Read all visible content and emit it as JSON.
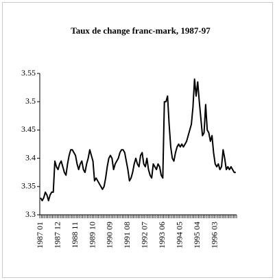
{
  "chart_data": {
    "type": "line",
    "title": "Taux de change franc-mark, 1987-97",
    "categories": [
      "1987 01",
      null,
      null,
      null,
      null,
      null,
      null,
      null,
      null,
      null,
      null,
      "1987 12",
      null,
      null,
      null,
      null,
      null,
      null,
      null,
      null,
      null,
      null,
      "1988 11",
      null,
      null,
      null,
      null,
      null,
      null,
      null,
      null,
      null,
      null,
      "1989 10",
      null,
      null,
      null,
      null,
      null,
      null,
      null,
      null,
      null,
      null,
      "1990 09",
      null,
      null,
      null,
      null,
      null,
      null,
      null,
      null,
      null,
      null,
      "1991 08",
      null,
      null,
      null,
      null,
      null,
      null,
      null,
      null,
      null,
      null,
      "1992 07",
      null,
      null,
      null,
      null,
      null,
      null,
      null,
      null,
      null,
      null,
      "1993 06",
      null,
      null,
      null,
      null,
      null,
      null,
      null,
      null,
      null,
      null,
      "1994 05",
      null,
      null,
      null,
      null,
      null,
      null,
      null,
      null,
      null,
      null,
      "1995 04",
      null,
      null,
      null,
      null,
      null,
      null,
      null,
      null,
      null,
      null,
      "1996 03",
      null,
      null,
      null,
      null,
      null,
      null,
      null,
      null,
      null,
      null,
      null,
      null,
      null
    ],
    "values": [
      3.33,
      3.325,
      3.33,
      3.34,
      3.335,
      3.325,
      3.335,
      3.34,
      3.34,
      3.395,
      3.385,
      3.38,
      3.39,
      3.395,
      3.385,
      3.375,
      3.37,
      3.39,
      3.405,
      3.415,
      3.415,
      3.41,
      3.405,
      3.39,
      3.38,
      3.39,
      3.395,
      3.38,
      3.375,
      3.39,
      3.4,
      3.415,
      3.405,
      3.395,
      3.36,
      3.365,
      3.36,
      3.355,
      3.35,
      3.345,
      3.35,
      3.365,
      3.385,
      3.4,
      3.405,
      3.4,
      3.38,
      3.39,
      3.395,
      3.4,
      3.41,
      3.415,
      3.415,
      3.41,
      3.395,
      3.38,
      3.36,
      3.365,
      3.375,
      3.39,
      3.4,
      3.39,
      3.385,
      3.405,
      3.41,
      3.39,
      3.385,
      3.4,
      3.38,
      3.37,
      3.365,
      3.39,
      3.385,
      3.38,
      3.39,
      3.385,
      3.37,
      3.365,
      3.5,
      3.5,
      3.51,
      3.46,
      3.42,
      3.4,
      3.395,
      3.41,
      3.42,
      3.425,
      3.42,
      3.425,
      3.42,
      3.425,
      3.43,
      3.44,
      3.45,
      3.46,
      3.49,
      3.54,
      3.51,
      3.535,
      3.5,
      3.47,
      3.44,
      3.445,
      3.495,
      3.45,
      3.445,
      3.43,
      3.44,
      3.41,
      3.39,
      3.385,
      3.39,
      3.38,
      3.385,
      3.415,
      3.4,
      3.38,
      3.385,
      3.38,
      3.385,
      3.38,
      3.375,
      3.375
    ],
    "color": "#000000",
    "ylim": [
      3.3,
      3.55
    ],
    "yticks": [
      3.3,
      3.35,
      3.4,
      3.45,
      3.5,
      3.55
    ],
    "grid": false
  }
}
